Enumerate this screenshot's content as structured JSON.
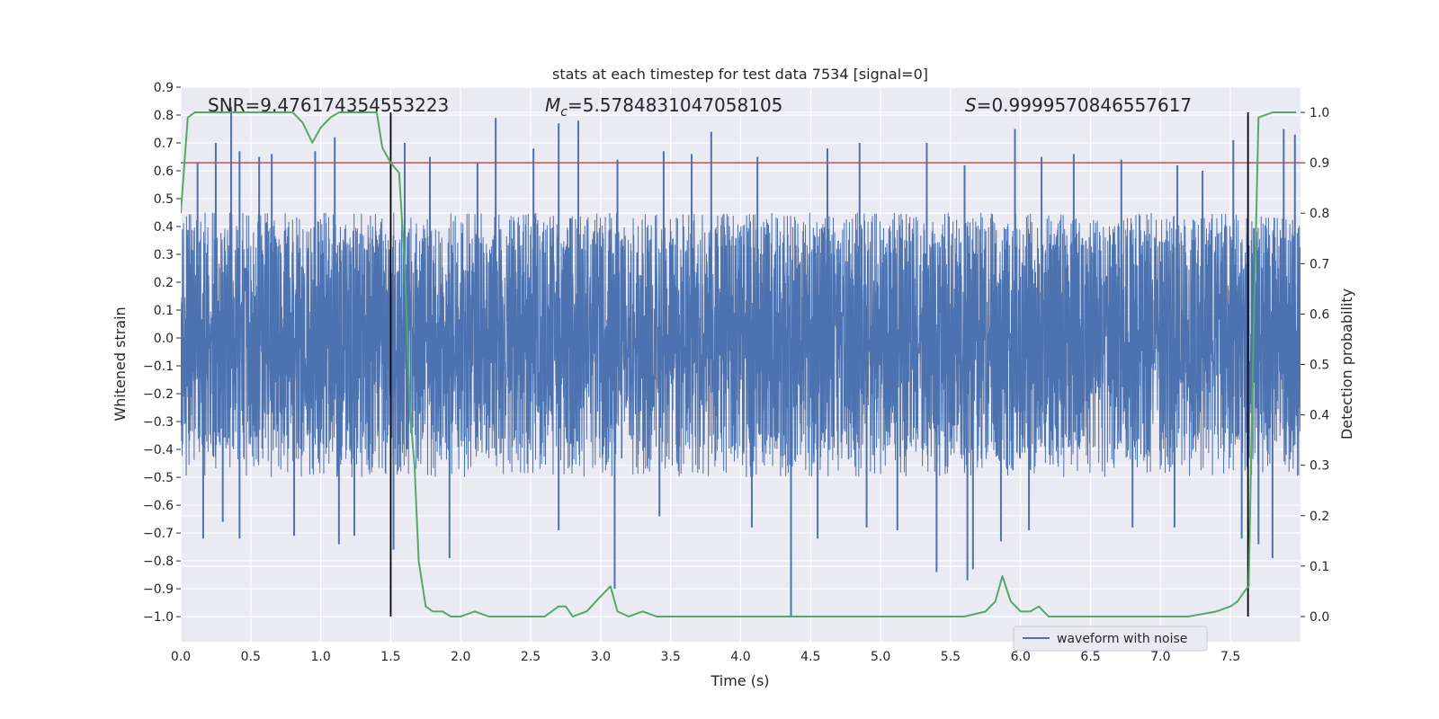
{
  "chart_data": {
    "type": "line",
    "title": "stats at each timestep for test data 7534 [signal=0]",
    "xlabel": "Time (s)",
    "ylabel": "Whitened strain",
    "y2label": "Detection probability",
    "xlim": [
      0.0,
      8.0
    ],
    "ylim": [
      -1.09,
      0.9
    ],
    "y2lim": [
      -0.05,
      1.05
    ],
    "x_ticks": [
      "0.0",
      "0.5",
      "1.0",
      "1.5",
      "2.0",
      "2.5",
      "3.0",
      "3.5",
      "4.0",
      "4.5",
      "5.0",
      "5.5",
      "6.0",
      "6.5",
      "7.0",
      "7.5"
    ],
    "y_ticks": [
      "0.9",
      "0.8",
      "0.7",
      "0.6",
      "0.5",
      "0.4",
      "0.3",
      "0.2",
      "0.1",
      "0.0",
      "−0.1",
      "−0.2",
      "−0.3",
      "−0.4",
      "−0.5",
      "−0.6",
      "−0.7",
      "−0.8",
      "−0.9",
      "−1.0"
    ],
    "y2_ticks": [
      "1.0",
      "0.9",
      "0.8",
      "0.7",
      "0.6",
      "0.5",
      "0.4",
      "0.3",
      "0.2",
      "0.1",
      "0.0"
    ],
    "grid": true,
    "legend": {
      "position": "lower-right",
      "entries": [
        "waveform with noise"
      ]
    },
    "annotations": {
      "snr": "SNR=9.476174354553223",
      "mc_symbol": "M",
      "mc_sub": "c",
      "mc_value": "=5.5784831047058105",
      "s_symbol": "S",
      "s_value": "=0.9999570846557617"
    },
    "threshold": {
      "y2": 0.9,
      "color": "#c44e52"
    },
    "vlines_x": [
      1.5,
      7.625
    ],
    "waveform": {
      "name": "waveform with noise",
      "color": "#4c72b0",
      "bulk_amplitude": [
        -0.28,
        0.28
      ],
      "typical_peak_range": [
        0.3,
        0.45
      ],
      "typical_trough_range": [
        -0.3,
        -0.5
      ],
      "spikes": [
        {
          "x": 0.36,
          "y": 0.83
        },
        {
          "x": 0.25,
          "y": 0.7
        },
        {
          "x": 0.12,
          "y": 0.63
        },
        {
          "x": 0.42,
          "y": 0.67
        },
        {
          "x": 0.56,
          "y": 0.65
        },
        {
          "x": 0.65,
          "y": 0.66
        },
        {
          "x": 0.96,
          "y": 0.67
        },
        {
          "x": 1.1,
          "y": 0.72
        },
        {
          "x": 1.6,
          "y": 0.7
        },
        {
          "x": 1.78,
          "y": 0.65
        },
        {
          "x": 2.12,
          "y": 0.63
        },
        {
          "x": 2.25,
          "y": 0.79
        },
        {
          "x": 2.52,
          "y": 0.68
        },
        {
          "x": 2.7,
          "y": 0.77
        },
        {
          "x": 2.84,
          "y": 0.78
        },
        {
          "x": 3.12,
          "y": 0.64
        },
        {
          "x": 3.45,
          "y": 0.67
        },
        {
          "x": 3.65,
          "y": 0.66
        },
        {
          "x": 3.79,
          "y": 0.74
        },
        {
          "x": 4.12,
          "y": 0.65
        },
        {
          "x": 4.62,
          "y": 0.68
        },
        {
          "x": 4.85,
          "y": 0.7
        },
        {
          "x": 5.33,
          "y": 0.7
        },
        {
          "x": 5.6,
          "y": 0.62
        },
        {
          "x": 5.96,
          "y": 0.75
        },
        {
          "x": 6.15,
          "y": 0.65
        },
        {
          "x": 6.38,
          "y": 0.66
        },
        {
          "x": 6.72,
          "y": 0.64
        },
        {
          "x": 7.12,
          "y": 0.62
        },
        {
          "x": 7.3,
          "y": 0.6
        },
        {
          "x": 7.52,
          "y": 0.71
        },
        {
          "x": 7.88,
          "y": 0.75
        },
        {
          "x": 7.96,
          "y": 0.73
        },
        {
          "x": 0.16,
          "y": -0.72
        },
        {
          "x": 0.3,
          "y": -0.66
        },
        {
          "x": 0.42,
          "y": -0.72
        },
        {
          "x": 0.81,
          "y": -0.71
        },
        {
          "x": 1.13,
          "y": -0.74
        },
        {
          "x": 1.24,
          "y": -0.71
        },
        {
          "x": 1.52,
          "y": -0.76
        },
        {
          "x": 1.92,
          "y": -0.79
        },
        {
          "x": 2.7,
          "y": -0.69
        },
        {
          "x": 3.1,
          "y": -0.9
        },
        {
          "x": 3.42,
          "y": -0.64
        },
        {
          "x": 4.08,
          "y": -0.68
        },
        {
          "x": 4.36,
          "y": -1.0
        },
        {
          "x": 4.55,
          "y": -0.72
        },
        {
          "x": 4.9,
          "y": -0.68
        },
        {
          "x": 5.12,
          "y": -0.69
        },
        {
          "x": 5.4,
          "y": -0.84
        },
        {
          "x": 5.62,
          "y": -0.87
        },
        {
          "x": 5.66,
          "y": -0.83
        },
        {
          "x": 5.86,
          "y": -0.73
        },
        {
          "x": 6.06,
          "y": -0.69
        },
        {
          "x": 6.8,
          "y": -0.68
        },
        {
          "x": 7.1,
          "y": -0.68
        },
        {
          "x": 7.58,
          "y": -0.72
        },
        {
          "x": 7.7,
          "y": -0.74
        },
        {
          "x": 7.8,
          "y": -0.79
        }
      ]
    },
    "detection_probability": {
      "color": "#55a868",
      "x": [
        0.0,
        0.05,
        0.1,
        0.2,
        0.3,
        0.4,
        0.5,
        0.6,
        0.7,
        0.8,
        0.87,
        0.94,
        1.0,
        1.07,
        1.13,
        1.2,
        1.27,
        1.33,
        1.4,
        1.44,
        1.5,
        1.56,
        1.6,
        1.64,
        1.67,
        1.7,
        1.75,
        1.8,
        1.87,
        1.93,
        2.0,
        2.1,
        2.2,
        2.3,
        2.4,
        2.5,
        2.6,
        2.7,
        2.75,
        2.8,
        2.9,
        3.0,
        3.07,
        3.12,
        3.2,
        3.3,
        3.4,
        3.6,
        3.8,
        4.0,
        4.2,
        4.4,
        4.6,
        4.8,
        5.0,
        5.2,
        5.4,
        5.6,
        5.75,
        5.82,
        5.87,
        5.93,
        6.0,
        6.07,
        6.13,
        6.2,
        6.3,
        6.5,
        6.8,
        7.0,
        7.2,
        7.4,
        7.5,
        7.55,
        7.6,
        7.63,
        7.66,
        7.7,
        7.8,
        7.9,
        7.97
      ],
      "y": [
        0.8,
        0.99,
        1.0,
        1.0,
        1.0,
        1.0,
        1.0,
        1.0,
        1.0,
        1.0,
        0.98,
        0.94,
        0.97,
        0.99,
        1.0,
        1.0,
        1.0,
        1.0,
        1.0,
        0.93,
        0.9,
        0.88,
        0.7,
        0.4,
        0.3,
        0.11,
        0.02,
        0.01,
        0.01,
        0.0,
        0.0,
        0.01,
        0.0,
        0.0,
        0.0,
        0.0,
        0.0,
        0.02,
        0.02,
        0.0,
        0.01,
        0.04,
        0.06,
        0.01,
        0.0,
        0.01,
        0.0,
        0.0,
        0.0,
        0.0,
        0.0,
        0.0,
        0.0,
        0.0,
        0.0,
        0.0,
        0.0,
        0.0,
        0.01,
        0.03,
        0.08,
        0.03,
        0.01,
        0.01,
        0.02,
        0.0,
        0.0,
        0.0,
        0.0,
        0.0,
        0.0,
        0.01,
        0.02,
        0.03,
        0.05,
        0.06,
        0.5,
        0.99,
        1.0,
        1.0,
        1.0
      ]
    }
  }
}
